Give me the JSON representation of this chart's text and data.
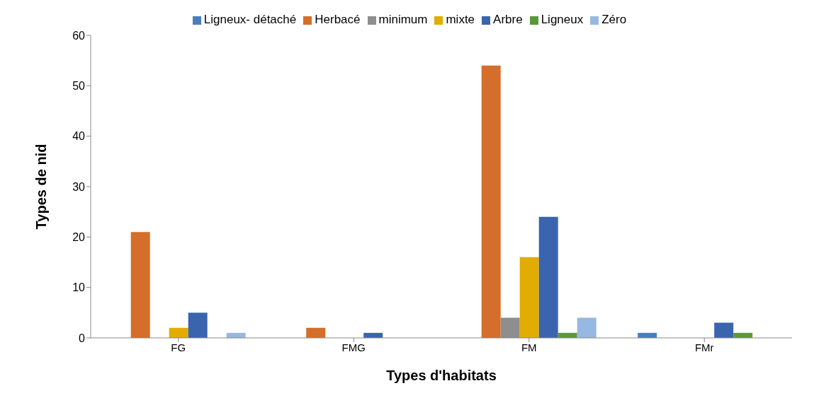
{
  "chart_data": {
    "type": "bar",
    "xlabel": "Types d'habitats",
    "ylabel": "Types de nid",
    "categories": [
      "FG",
      "FMG",
      "FM",
      "FMr"
    ],
    "ylim": [
      0,
      60
    ],
    "yticks": [
      0,
      10,
      20,
      30,
      40,
      50,
      60
    ],
    "grid": false,
    "legend": "top",
    "series": [
      {
        "name": "Ligneux- détaché",
        "color": "#4a7ebb",
        "values": [
          0,
          0,
          0,
          1
        ]
      },
      {
        "name": "Herbacé",
        "color": "#d46e2a",
        "values": [
          21,
          2,
          54,
          0
        ]
      },
      {
        "name": "minimum",
        "color": "#8e8e8e",
        "values": [
          0,
          0,
          4,
          0
        ]
      },
      {
        "name": "mixte",
        "color": "#e2ac00",
        "values": [
          2,
          0,
          16,
          0
        ]
      },
      {
        "name": "Arbre",
        "color": "#3a64ad",
        "values": [
          5,
          1,
          24,
          3
        ]
      },
      {
        "name": "Ligneux",
        "color": "#5d9838",
        "values": [
          0,
          0,
          1,
          1
        ]
      },
      {
        "name": "Zéro",
        "color": "#97b8e0",
        "values": [
          1,
          0,
          4,
          0
        ]
      }
    ]
  }
}
